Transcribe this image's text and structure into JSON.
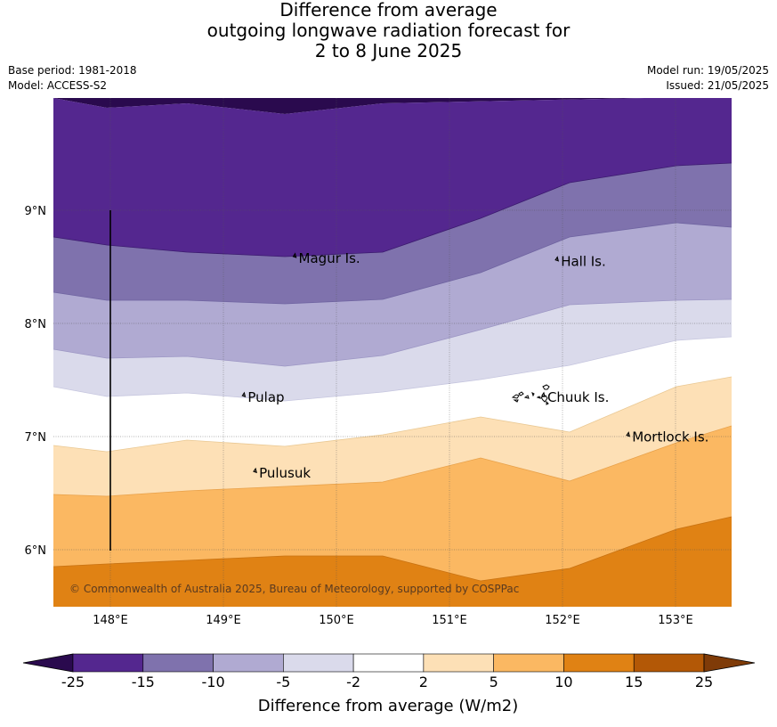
{
  "title": {
    "line1": "Difference from average",
    "line2": "outgoing longwave radiation forecast for",
    "line3": "2 to 8 June 2025"
  },
  "meta": {
    "base_period": "Base period: 1981-2018",
    "model": "Model: ACCESS-S2",
    "model_run": "Model run: 19/05/2025",
    "issued": "Issued: 21/05/2025"
  },
  "map": {
    "lon_range": [
      147.5,
      153.5
    ],
    "lat_range": [
      5.5,
      10.0
    ],
    "lon_ticks": [
      {
        "value": 148,
        "label": "148°E"
      },
      {
        "value": 149,
        "label": "149°E"
      },
      {
        "value": 150,
        "label": "150°E"
      },
      {
        "value": 151,
        "label": "151°E"
      },
      {
        "value": 152,
        "label": "152°E"
      },
      {
        "value": 153,
        "label": "153°E"
      }
    ],
    "lat_ticks": [
      {
        "value": 9,
        "label": "9°N"
      },
      {
        "value": 8,
        "label": "8°N"
      },
      {
        "value": 7,
        "label": "7°N"
      },
      {
        "value": 6,
        "label": "6°N"
      }
    ],
    "gridlines": true,
    "places": [
      {
        "name": "Magur Is.",
        "lon": 149.65,
        "lat": 8.56
      },
      {
        "name": "Hall Is.",
        "lon": 151.97,
        "lat": 8.53
      },
      {
        "name": "Pulap",
        "lon": 149.2,
        "lat": 7.33
      },
      {
        "name": "Chuuk Is.",
        "lon": 151.85,
        "lat": 7.33
      },
      {
        "name": "Mortlock Is.",
        "lon": 152.6,
        "lat": 6.98
      },
      {
        "name": "Pulusuk",
        "lon": 149.3,
        "lat": 6.66
      }
    ],
    "copyright": "© Commonwealth of Australia 2025, Bureau of Meteorology, supported by COSPPac"
  },
  "colorbar": {
    "title": "Difference from average (W/m2)",
    "labels": [
      "-25",
      "-15",
      "-10",
      "-5",
      "-2",
      "2",
      "5",
      "10",
      "15",
      "25"
    ],
    "colors": [
      "#2a0a4e",
      "#54278f",
      "#7f72ad",
      "#b0aad2",
      "#dadaeb",
      "#ffffff",
      "#fde0b6",
      "#fbb862",
      "#e08214",
      "#b35806",
      "#7f3b08"
    ]
  }
}
